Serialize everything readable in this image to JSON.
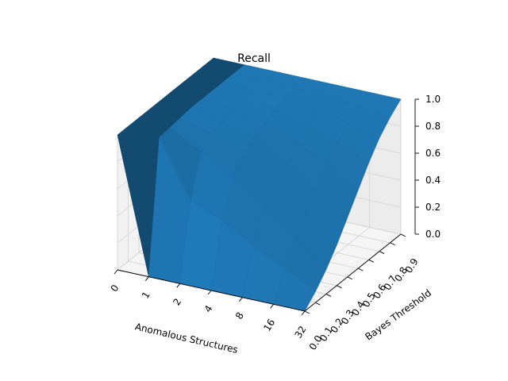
{
  "chart_data": {
    "type": "surface3d",
    "title": "Recall",
    "xlabel": "Anomalous Structures",
    "ylabel": "Bayes Threshold",
    "zlabel": "",
    "x_ticks": [
      "0",
      "1",
      "2",
      "4",
      "8",
      "16",
      "32"
    ],
    "y_ticks": [
      "0.0",
      "0.1",
      "0.2",
      "0.3",
      "0.4",
      "0.5",
      "0.6",
      "0.7",
      "0.8",
      "0.9"
    ],
    "z_ticks": [
      "0.0",
      "0.2",
      "0.4",
      "0.6",
      "0.8",
      "1.0"
    ],
    "zlim": [
      0,
      1
    ],
    "grid": true,
    "surface_color": "#1f77b4",
    "z": [
      [
        1.0,
        1.0,
        1.0,
        1.0,
        1.0,
        1.0,
        1.0,
        1.0,
        1.0,
        1.0
      ],
      [
        0.0,
        0.97,
        0.98,
        0.99,
        1.0,
        1.0,
        1.0,
        1.0,
        1.0,
        1.0
      ],
      [
        0.0,
        0.55,
        0.85,
        0.92,
        0.95,
        0.97,
        0.98,
        0.99,
        1.0,
        1.0
      ],
      [
        0.0,
        0.45,
        0.72,
        0.82,
        0.88,
        0.93,
        0.96,
        0.98,
        0.99,
        1.0
      ],
      [
        0.0,
        0.32,
        0.55,
        0.66,
        0.76,
        0.84,
        0.9,
        0.95,
        0.98,
        1.0
      ],
      [
        0.0,
        0.2,
        0.36,
        0.48,
        0.6,
        0.72,
        0.82,
        0.9,
        0.96,
        1.0
      ],
      [
        0.0,
        0.08,
        0.18,
        0.3,
        0.44,
        0.58,
        0.72,
        0.84,
        0.93,
        1.0
      ]
    ]
  }
}
